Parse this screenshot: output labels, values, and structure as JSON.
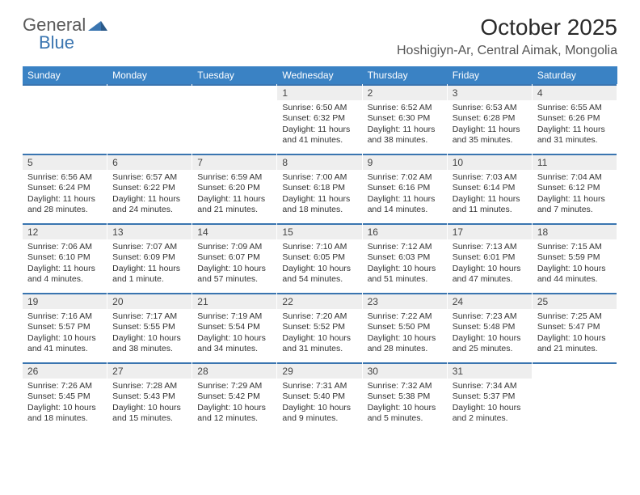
{
  "brand": {
    "part1": "General",
    "part2": "Blue"
  },
  "header": {
    "title": "October 2025",
    "location": "Hoshigiyn-Ar, Central Aimak, Mongolia"
  },
  "colors": {
    "header_bg": "#3a82c4",
    "accent": "#3a75b0",
    "daynum_bg": "#eeeeee",
    "text": "#333333"
  },
  "typography": {
    "title_fontsize": 28,
    "location_fontsize": 16,
    "dayheader_fontsize": 12,
    "body_fontsize": 10.5
  },
  "dayNames": [
    "Sunday",
    "Monday",
    "Tuesday",
    "Wednesday",
    "Thursday",
    "Friday",
    "Saturday"
  ],
  "weeks": [
    [
      null,
      null,
      null,
      {
        "d": "1",
        "sr": "6:50 AM",
        "ss": "6:32 PM",
        "dl": "11 hours and 41 minutes."
      },
      {
        "d": "2",
        "sr": "6:52 AM",
        "ss": "6:30 PM",
        "dl": "11 hours and 38 minutes."
      },
      {
        "d": "3",
        "sr": "6:53 AM",
        "ss": "6:28 PM",
        "dl": "11 hours and 35 minutes."
      },
      {
        "d": "4",
        "sr": "6:55 AM",
        "ss": "6:26 PM",
        "dl": "11 hours and 31 minutes."
      }
    ],
    [
      {
        "d": "5",
        "sr": "6:56 AM",
        "ss": "6:24 PM",
        "dl": "11 hours and 28 minutes."
      },
      {
        "d": "6",
        "sr": "6:57 AM",
        "ss": "6:22 PM",
        "dl": "11 hours and 24 minutes."
      },
      {
        "d": "7",
        "sr": "6:59 AM",
        "ss": "6:20 PM",
        "dl": "11 hours and 21 minutes."
      },
      {
        "d": "8",
        "sr": "7:00 AM",
        "ss": "6:18 PM",
        "dl": "11 hours and 18 minutes."
      },
      {
        "d": "9",
        "sr": "7:02 AM",
        "ss": "6:16 PM",
        "dl": "11 hours and 14 minutes."
      },
      {
        "d": "10",
        "sr": "7:03 AM",
        "ss": "6:14 PM",
        "dl": "11 hours and 11 minutes."
      },
      {
        "d": "11",
        "sr": "7:04 AM",
        "ss": "6:12 PM",
        "dl": "11 hours and 7 minutes."
      }
    ],
    [
      {
        "d": "12",
        "sr": "7:06 AM",
        "ss": "6:10 PM",
        "dl": "11 hours and 4 minutes."
      },
      {
        "d": "13",
        "sr": "7:07 AM",
        "ss": "6:09 PM",
        "dl": "11 hours and 1 minute."
      },
      {
        "d": "14",
        "sr": "7:09 AM",
        "ss": "6:07 PM",
        "dl": "10 hours and 57 minutes."
      },
      {
        "d": "15",
        "sr": "7:10 AM",
        "ss": "6:05 PM",
        "dl": "10 hours and 54 minutes."
      },
      {
        "d": "16",
        "sr": "7:12 AM",
        "ss": "6:03 PM",
        "dl": "10 hours and 51 minutes."
      },
      {
        "d": "17",
        "sr": "7:13 AM",
        "ss": "6:01 PM",
        "dl": "10 hours and 47 minutes."
      },
      {
        "d": "18",
        "sr": "7:15 AM",
        "ss": "5:59 PM",
        "dl": "10 hours and 44 minutes."
      }
    ],
    [
      {
        "d": "19",
        "sr": "7:16 AM",
        "ss": "5:57 PM",
        "dl": "10 hours and 41 minutes."
      },
      {
        "d": "20",
        "sr": "7:17 AM",
        "ss": "5:55 PM",
        "dl": "10 hours and 38 minutes."
      },
      {
        "d": "21",
        "sr": "7:19 AM",
        "ss": "5:54 PM",
        "dl": "10 hours and 34 minutes."
      },
      {
        "d": "22",
        "sr": "7:20 AM",
        "ss": "5:52 PM",
        "dl": "10 hours and 31 minutes."
      },
      {
        "d": "23",
        "sr": "7:22 AM",
        "ss": "5:50 PM",
        "dl": "10 hours and 28 minutes."
      },
      {
        "d": "24",
        "sr": "7:23 AM",
        "ss": "5:48 PM",
        "dl": "10 hours and 25 minutes."
      },
      {
        "d": "25",
        "sr": "7:25 AM",
        "ss": "5:47 PM",
        "dl": "10 hours and 21 minutes."
      }
    ],
    [
      {
        "d": "26",
        "sr": "7:26 AM",
        "ss": "5:45 PM",
        "dl": "10 hours and 18 minutes."
      },
      {
        "d": "27",
        "sr": "7:28 AM",
        "ss": "5:43 PM",
        "dl": "10 hours and 15 minutes."
      },
      {
        "d": "28",
        "sr": "7:29 AM",
        "ss": "5:42 PM",
        "dl": "10 hours and 12 minutes."
      },
      {
        "d": "29",
        "sr": "7:31 AM",
        "ss": "5:40 PM",
        "dl": "10 hours and 9 minutes."
      },
      {
        "d": "30",
        "sr": "7:32 AM",
        "ss": "5:38 PM",
        "dl": "10 hours and 5 minutes."
      },
      {
        "d": "31",
        "sr": "7:34 AM",
        "ss": "5:37 PM",
        "dl": "10 hours and 2 minutes."
      },
      null
    ]
  ],
  "labels": {
    "sunrise": "Sunrise:",
    "sunset": "Sunset:",
    "daylight": "Daylight:"
  }
}
